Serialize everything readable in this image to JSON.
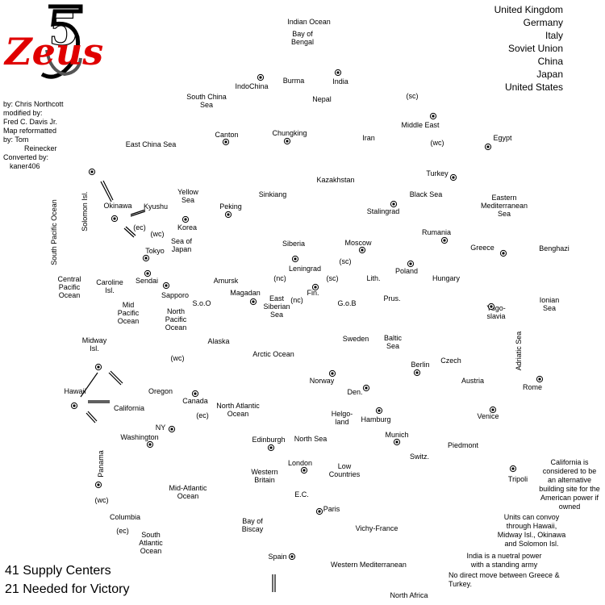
{
  "logo": {
    "text": "Zeus",
    "numeral": "5"
  },
  "credits": [
    "by: Chris Northcott",
    "modified by:",
    "Fred C. Davis Jr.",
    "Map reformatted",
    "by: Tom",
    "Reinecker",
    "Converted by:",
    "kaner406"
  ],
  "powers": [
    "United Kingdom",
    "Germany",
    "Italy",
    "Soviet Union",
    "China",
    "Japan",
    "United States"
  ],
  "footer": {
    "supply": "41 Supply Centers",
    "victory": "21 Needed for Victory"
  },
  "notes": {
    "california": [
      "California is",
      "considered to be",
      "an alternative",
      "building site for the",
      "American power if",
      "owned"
    ],
    "convoy": [
      "Units can convoy",
      "through Hawaii,",
      "Midway Isl., Okinawa",
      "and Solomon Isl."
    ],
    "india": [
      "India is a nuetral power",
      "with a standing army"
    ],
    "greece": [
      "No direct move between Greece &",
      "Turkey."
    ]
  },
  "regions": [
    {
      "name": "Indian Ocean",
      "lines": [
        "Indian Ocean"
      ]
    },
    {
      "name": "Bay of Bengal",
      "lines": [
        "Bay of",
        "Bengal"
      ]
    },
    {
      "name": "IndoChina",
      "lines": [
        "IndoChina"
      ],
      "sc": true
    },
    {
      "name": "Burma",
      "lines": [
        "Burma"
      ]
    },
    {
      "name": "India",
      "lines": [
        "India"
      ],
      "sc": true
    },
    {
      "name": "South China Sea",
      "lines": [
        "South China",
        "Sea"
      ]
    },
    {
      "name": "Nepal",
      "lines": [
        "Nepal"
      ]
    },
    {
      "name": "Middle East",
      "lines": [
        "Middle East"
      ],
      "sc": true
    },
    {
      "name": "Canton",
      "lines": [
        "Canton"
      ],
      "sc": true
    },
    {
      "name": "Chungking",
      "lines": [
        "Chungking"
      ],
      "sc": true
    },
    {
      "name": "Iran",
      "lines": [
        "Iran"
      ]
    },
    {
      "name": "Egypt",
      "lines": [
        "Egypt"
      ],
      "sc": true
    },
    {
      "name": "East China Sea",
      "lines": [
        "East China Sea"
      ]
    },
    {
      "name": "Kazakhstan",
      "lines": [
        "Kazakhstan"
      ]
    },
    {
      "name": "Turkey",
      "lines": [
        "Turkey"
      ],
      "sc": true
    },
    {
      "name": "Solomon Isl.",
      "lines": [
        "Solomon Isl."
      ],
      "sc": true
    },
    {
      "name": "Yellow Sea",
      "lines": [
        "Yellow",
        "Sea"
      ]
    },
    {
      "name": "Sinkiang",
      "lines": [
        "Sinkiang"
      ]
    },
    {
      "name": "Black Sea",
      "lines": [
        "Black Sea"
      ]
    },
    {
      "name": "Okinawa",
      "lines": [
        "Okinawa"
      ],
      "sc": true
    },
    {
      "name": "Kyushu",
      "lines": [
        "Kyushu"
      ]
    },
    {
      "name": "Peking",
      "lines": [
        "Peking"
      ],
      "sc": true
    },
    {
      "name": "Stalingrad",
      "lines": [
        "Stalingrad"
      ],
      "sc": true
    },
    {
      "name": "Eastern Mediterranean Sea",
      "lines": [
        "Eastern",
        "Mediterranean",
        "Sea"
      ]
    },
    {
      "name": "Korea",
      "lines": [
        "Korea"
      ],
      "sc": true
    },
    {
      "name": "South Pacific Ocean",
      "lines": [
        "South Pacific Ocean"
      ]
    },
    {
      "name": "Rumania",
      "lines": [
        "Rumania"
      ],
      "sc": true
    },
    {
      "name": "Siberia",
      "lines": [
        "Siberia"
      ]
    },
    {
      "name": "Moscow",
      "lines": [
        "Moscow"
      ],
      "sc": true
    },
    {
      "name": "Greece",
      "lines": [
        "Greece"
      ],
      "sc": true
    },
    {
      "name": "Benghazi",
      "lines": [
        "Benghazi"
      ]
    },
    {
      "name": "Tokyo",
      "lines": [
        "Tokyo"
      ],
      "sc": true
    },
    {
      "name": "Sea of Japan",
      "lines": [
        "Sea of",
        "Japan"
      ]
    },
    {
      "name": "Leningrad",
      "lines": [
        "Leningrad"
      ],
      "sc": true
    },
    {
      "name": "Poland",
      "lines": [
        "Poland"
      ],
      "sc": true
    },
    {
      "name": "Sendai",
      "lines": [
        "Sendai"
      ],
      "sc": true
    },
    {
      "name": "Amursk",
      "lines": [
        "Amursk"
      ]
    },
    {
      "name": "Lith.",
      "lines": [
        "Lith."
      ]
    },
    {
      "name": "Hungary",
      "lines": [
        "Hungary"
      ]
    },
    {
      "name": "Central Pacific Ocean",
      "lines": [
        "Central",
        "Pacific",
        "Ocean"
      ]
    },
    {
      "name": "Caroline Isl.",
      "lines": [
        "Caroline",
        "Isl."
      ],
      "sc": true
    },
    {
      "name": "Sapporo",
      "lines": [
        "Sapporo"
      ]
    },
    {
      "name": "Magadan",
      "lines": [
        "Magadan"
      ],
      "sc": true
    },
    {
      "name": "Fin.",
      "lines": [
        "Fin."
      ],
      "sc": true
    },
    {
      "name": "Prus.",
      "lines": [
        "Prus."
      ]
    },
    {
      "name": "S.o.O",
      "lines": [
        "S.o.O"
      ]
    },
    {
      "name": "G.o.B",
      "lines": [
        "G.o.B"
      ]
    },
    {
      "name": "East Siberian Sea",
      "lines": [
        "East",
        "Siberian",
        "Sea"
      ]
    },
    {
      "name": "Ionian Sea",
      "lines": [
        "Ionian",
        "Sea"
      ]
    },
    {
      "name": "Yugoslavia",
      "lines": [
        "Yugo-",
        "slavia"
      ],
      "sc": true
    },
    {
      "name": "Mid Pacific Ocean",
      "lines": [
        "Mid",
        "Pacific",
        "Ocean"
      ]
    },
    {
      "name": "North Pacific Ocean",
      "lines": [
        "North",
        "Pacific",
        "Ocean"
      ]
    },
    {
      "name": "Sweden",
      "lines": [
        "Sweden"
      ]
    },
    {
      "name": "Alaska",
      "lines": [
        "Alaska"
      ]
    },
    {
      "name": "Baltic Sea",
      "lines": [
        "Baltic",
        "Sea"
      ]
    },
    {
      "name": "Adriatic Sea",
      "lines": [
        "Adriatic Sea"
      ]
    },
    {
      "name": "Midway Isl.",
      "lines": [
        "Midway",
        "Isl."
      ],
      "sc": true
    },
    {
      "name": "Arctic Ocean",
      "lines": [
        "Arctic Ocean"
      ]
    },
    {
      "name": "Czech",
      "lines": [
        "Czech"
      ]
    },
    {
      "name": "Berlin",
      "lines": [
        "Berlin"
      ],
      "sc": true
    },
    {
      "name": "Norway",
      "lines": [
        "Norway"
      ],
      "sc": true
    },
    {
      "name": "Austria",
      "lines": [
        "Austria"
      ]
    },
    {
      "name": "Rome",
      "lines": [
        "Rome"
      ],
      "sc": true
    },
    {
      "name": "Hawaii",
      "lines": [
        "Hawaii"
      ],
      "sc": true
    },
    {
      "name": "Oregon",
      "lines": [
        "Oregon"
      ]
    },
    {
      "name": "Den.",
      "lines": [
        "Den."
      ],
      "sc": true
    },
    {
      "name": "Canada",
      "lines": [
        "Canada"
      ],
      "sc": true
    },
    {
      "name": "California",
      "lines": [
        "California"
      ]
    },
    {
      "name": "North Atlantic Ocean",
      "lines": [
        "North Atlantic",
        "Ocean"
      ]
    },
    {
      "name": "Helgoland",
      "lines": [
        "Helgo-",
        "land"
      ]
    },
    {
      "name": "Hamburg",
      "lines": [
        "Hamburg"
      ],
      "sc": true
    },
    {
      "name": "Venice",
      "lines": [
        "Venice"
      ],
      "sc": true
    },
    {
      "name": "NY",
      "lines": [
        "NY"
      ],
      "sc": true
    },
    {
      "name": "Munich",
      "lines": [
        "Munich"
      ],
      "sc": true
    },
    {
      "name": "Washington",
      "lines": [
        "Washington"
      ],
      "sc": true
    },
    {
      "name": "Edinburgh",
      "lines": [
        "Edinburgh"
      ],
      "sc": true
    },
    {
      "name": "North Sea",
      "lines": [
        "North Sea"
      ]
    },
    {
      "name": "Piedmont",
      "lines": [
        "Piedmont"
      ]
    },
    {
      "name": "Panama",
      "lines": [
        "Panama"
      ],
      "sc": true
    },
    {
      "name": "Switz.",
      "lines": [
        "Switz."
      ]
    },
    {
      "name": "London",
      "lines": [
        "London"
      ],
      "sc": true
    },
    {
      "name": "Low Countries",
      "lines": [
        "Low",
        "Countries"
      ]
    },
    {
      "name": "Western Britain",
      "lines": [
        "Western",
        "Britain"
      ]
    },
    {
      "name": "Tripoli",
      "lines": [
        "Tripoli"
      ],
      "sc": true
    },
    {
      "name": "Mid-Atlantic Ocean",
      "lines": [
        "Mid-Atlantic",
        "Ocean"
      ]
    },
    {
      "name": "E.C.",
      "lines": [
        "E.C."
      ]
    },
    {
      "name": "Paris",
      "lines": [
        "Paris"
      ],
      "sc": true
    },
    {
      "name": "Columbia",
      "lines": [
        "Columbia"
      ]
    },
    {
      "name": "Bay of Biscay",
      "lines": [
        "Bay of",
        "Biscay"
      ]
    },
    {
      "name": "Vichy-France",
      "lines": [
        "Vichy-France"
      ]
    },
    {
      "name": "South Atlantic Ocean",
      "lines": [
        "South",
        "Atlantic",
        "Ocean"
      ]
    },
    {
      "name": "Spain",
      "lines": [
        "Spain"
      ],
      "sc": true
    },
    {
      "name": "Western Mediterranean",
      "lines": [
        "Western Mediterranean"
      ]
    },
    {
      "name": "North Africa",
      "lines": [
        "North Africa"
      ]
    }
  ],
  "coasts": [
    "(sc)",
    "(wc)",
    "(ec)",
    "(wc)",
    "(sc)",
    "(nc)",
    "(sc)",
    "(nc)",
    "(wc)",
    "(ec)",
    "(wc)",
    "(ec)"
  ]
}
